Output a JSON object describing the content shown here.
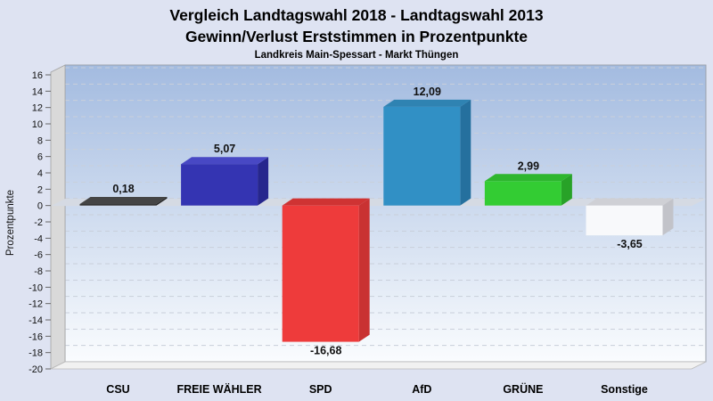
{
  "header": {
    "title_line1": "Vergleich Landtagswahl 2018 - Landtagswahl 2013",
    "title_line2": "Gewinn/Verlust Erststimmen in Prozentpunkte",
    "subtitle": "Landkreis Main-Spessart - Markt Thüngen"
  },
  "chart_data": {
    "type": "bar",
    "title": "Vergleich Landtagswahl 2018 - Landtagswahl 2013 — Gewinn/Verlust Erststimmen in Prozentpunkte",
    "subtitle": "Landkreis Main-Spessart - Markt Thüngen",
    "categories": [
      "CSU",
      "FREIE WÄHLER",
      "SPD",
      "AfD",
      "GRÜNE",
      "Sonstige"
    ],
    "values": [
      0.18,
      5.07,
      -16.68,
      12.09,
      2.99,
      -3.65
    ],
    "value_labels": [
      "0,18",
      "5,07",
      "-16,68",
      "12,09",
      "2,99",
      "-3,65"
    ],
    "xlabel": "",
    "ylabel": "Prozentpunkte",
    "ylim": [
      -20,
      16
    ],
    "ytick_step": 2,
    "grid": "dashed-horizontal",
    "legend": "none",
    "style_3d": true,
    "bar_colors": [
      {
        "party": "CSU",
        "front": "#333333",
        "top": "#454545",
        "side": "#1d1d1d"
      },
      {
        "party": "FREIE WÄHLER",
        "front": "#3434b2",
        "top": "#4848c4",
        "side": "#26268d"
      },
      {
        "party": "SPD",
        "front": "#ee3b3b",
        "top": "#cf3333",
        "side": "#c93232"
      },
      {
        "party": "AfD",
        "front": "#3190c5",
        "top": "#2f83b2",
        "side": "#25709e"
      },
      {
        "party": "GRÜNE",
        "front": "#33cc33",
        "top": "#2eb62e",
        "side": "#28a228"
      },
      {
        "party": "Sonstige",
        "front": "#f8f9fb",
        "top": "#cfd0d5",
        "side": "#c2c3c9"
      }
    ],
    "style": {
      "page_bg": "#dee3f2",
      "plot_bg_top": "#a3bbe0",
      "plot_bg_bottom": "#fafcfe",
      "plot_border": "#9aa0ab",
      "grid_color": "#c9cfda",
      "wall_color": "#d9d9d9",
      "wall_border": "#a2a2a2",
      "floor_color": "#f1f1f1",
      "zero_band_color": "#d5dae3",
      "tick_color": "#666666",
      "text_color": "#111111"
    }
  }
}
